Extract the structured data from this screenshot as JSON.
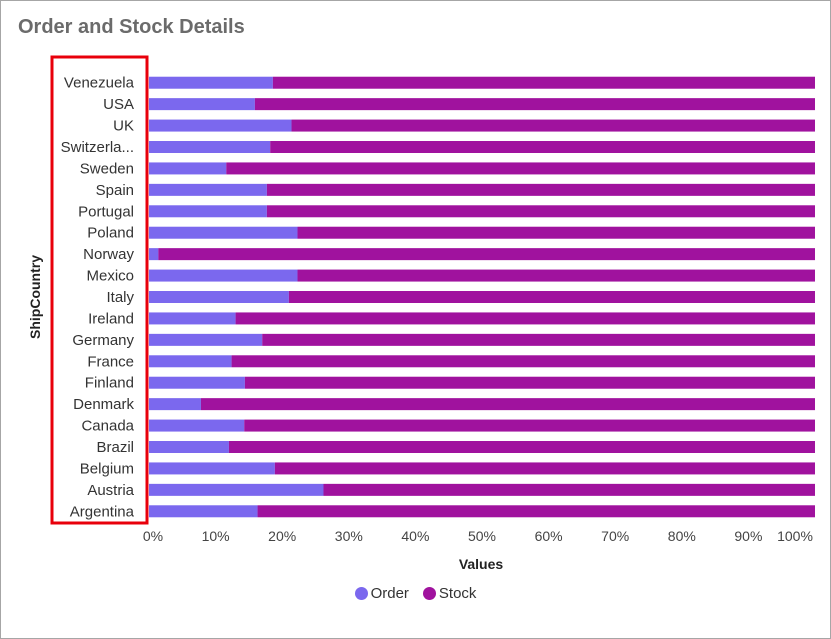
{
  "header": {
    "title": "Order and Stock Details"
  },
  "chart_data": {
    "type": "bar",
    "orientation": "horizontal",
    "stacked": "percent",
    "xlabel": "Values",
    "ylabel": "ShipCountry",
    "xlim": [
      0,
      100
    ],
    "x_ticks": [
      "0%",
      "10%",
      "20%",
      "30%",
      "40%",
      "50%",
      "60%",
      "70%",
      "80%",
      "90%",
      "100%"
    ],
    "categories": [
      "Venezuela",
      "USA",
      "UK",
      "Switzerla...",
      "Sweden",
      "Spain",
      "Portugal",
      "Poland",
      "Norway",
      "Mexico",
      "Italy",
      "Ireland",
      "Germany",
      "France",
      "Finland",
      "Denmark",
      "Canada",
      "Brazil",
      "Belgium",
      "Austria",
      "Argentina"
    ],
    "series": [
      {
        "name": "Order",
        "color": "#7b68ee",
        "values": [
          18.6,
          15.9,
          21.4,
          18.2,
          11.6,
          17.7,
          17.7,
          22.3,
          1.4,
          22.3,
          21.0,
          13.0,
          17.0,
          12.4,
          14.4,
          7.8,
          14.3,
          12.0,
          18.9,
          26.2,
          16.3
        ]
      },
      {
        "name": "Stock",
        "color": "#a0129e",
        "values": [
          81.4,
          84.1,
          78.6,
          81.8,
          88.4,
          82.3,
          82.3,
          77.7,
          98.6,
          77.7,
          79.0,
          87.0,
          83.0,
          87.6,
          85.6,
          92.2,
          85.7,
          88.0,
          81.1,
          73.8,
          83.7
        ]
      }
    ],
    "legend_position": "bottom",
    "highlight_box_color": "#e8000b"
  }
}
